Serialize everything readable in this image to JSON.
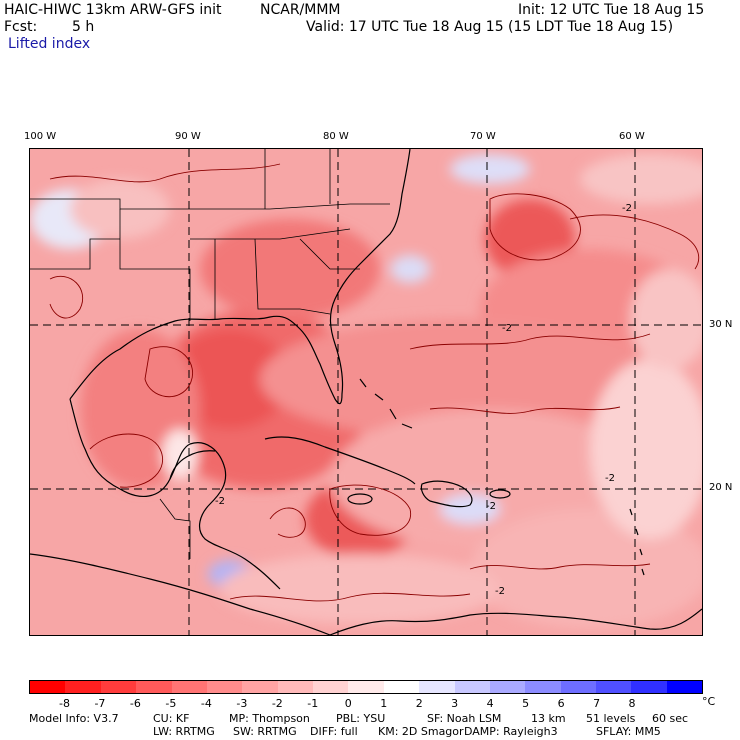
{
  "header": {
    "model": "HAIC-HIWC 13km ARW-GFS init",
    "org": "NCAR/MMM",
    "init": "Init: 12 UTC Tue 18 Aug 15",
    "fcst_label": "Fcst:",
    "fcst_value": "5 h",
    "valid": "Valid: 17 UTC Tue 18 Aug 15 (15 LDT Tue 18 Aug 15)",
    "field": "Lifted index"
  },
  "axes": {
    "lon_labels": [
      "100 W",
      "90 W",
      "80 W",
      "70 W",
      "60 W"
    ],
    "lat_labels": [
      "30 N",
      "20 N"
    ]
  },
  "contour_labels": [
    "-2",
    "-2",
    "-2",
    "-2",
    "-2",
    "-2"
  ],
  "colorbar": {
    "colors": [
      "#ff0000",
      "#ff2020",
      "#ff3c3c",
      "#ff5a5a",
      "#ff7474",
      "#ff8c8c",
      "#ffa4a4",
      "#ffbaba",
      "#ffd2d2",
      "#ffeaea",
      "#ffffff",
      "#e6e6ff",
      "#c8c8ff",
      "#aaaaff",
      "#8c8cff",
      "#6e6eff",
      "#5050ff",
      "#3030ff",
      "#0000ff"
    ],
    "labels": [
      "-8",
      "-7",
      "-6",
      "-5",
      "-4",
      "-3",
      "-2",
      "-1",
      "0",
      "1",
      "2",
      "3",
      "4",
      "5",
      "6",
      "7",
      "8"
    ],
    "unit": "°C"
  },
  "model_info": {
    "line1": [
      {
        "text": "Model Info: V3.7"
      },
      {
        "text": "CU: KF"
      },
      {
        "text": "MP: Thompson"
      },
      {
        "text": "PBL: YSU"
      },
      {
        "text": "SF: Noah LSM"
      },
      {
        "text": "13 km"
      },
      {
        "text": "51 levels"
      },
      {
        "text": "60 sec"
      }
    ],
    "line2": [
      {
        "text": "LW: RRTMG"
      },
      {
        "text": "SW: RRTMG"
      },
      {
        "text": "DIFF: full"
      },
      {
        "text": "KM: 2D Smagor"
      },
      {
        "text": "DAMP: Rayleigh3"
      },
      {
        "text": "SFLAY: MM5"
      }
    ]
  }
}
